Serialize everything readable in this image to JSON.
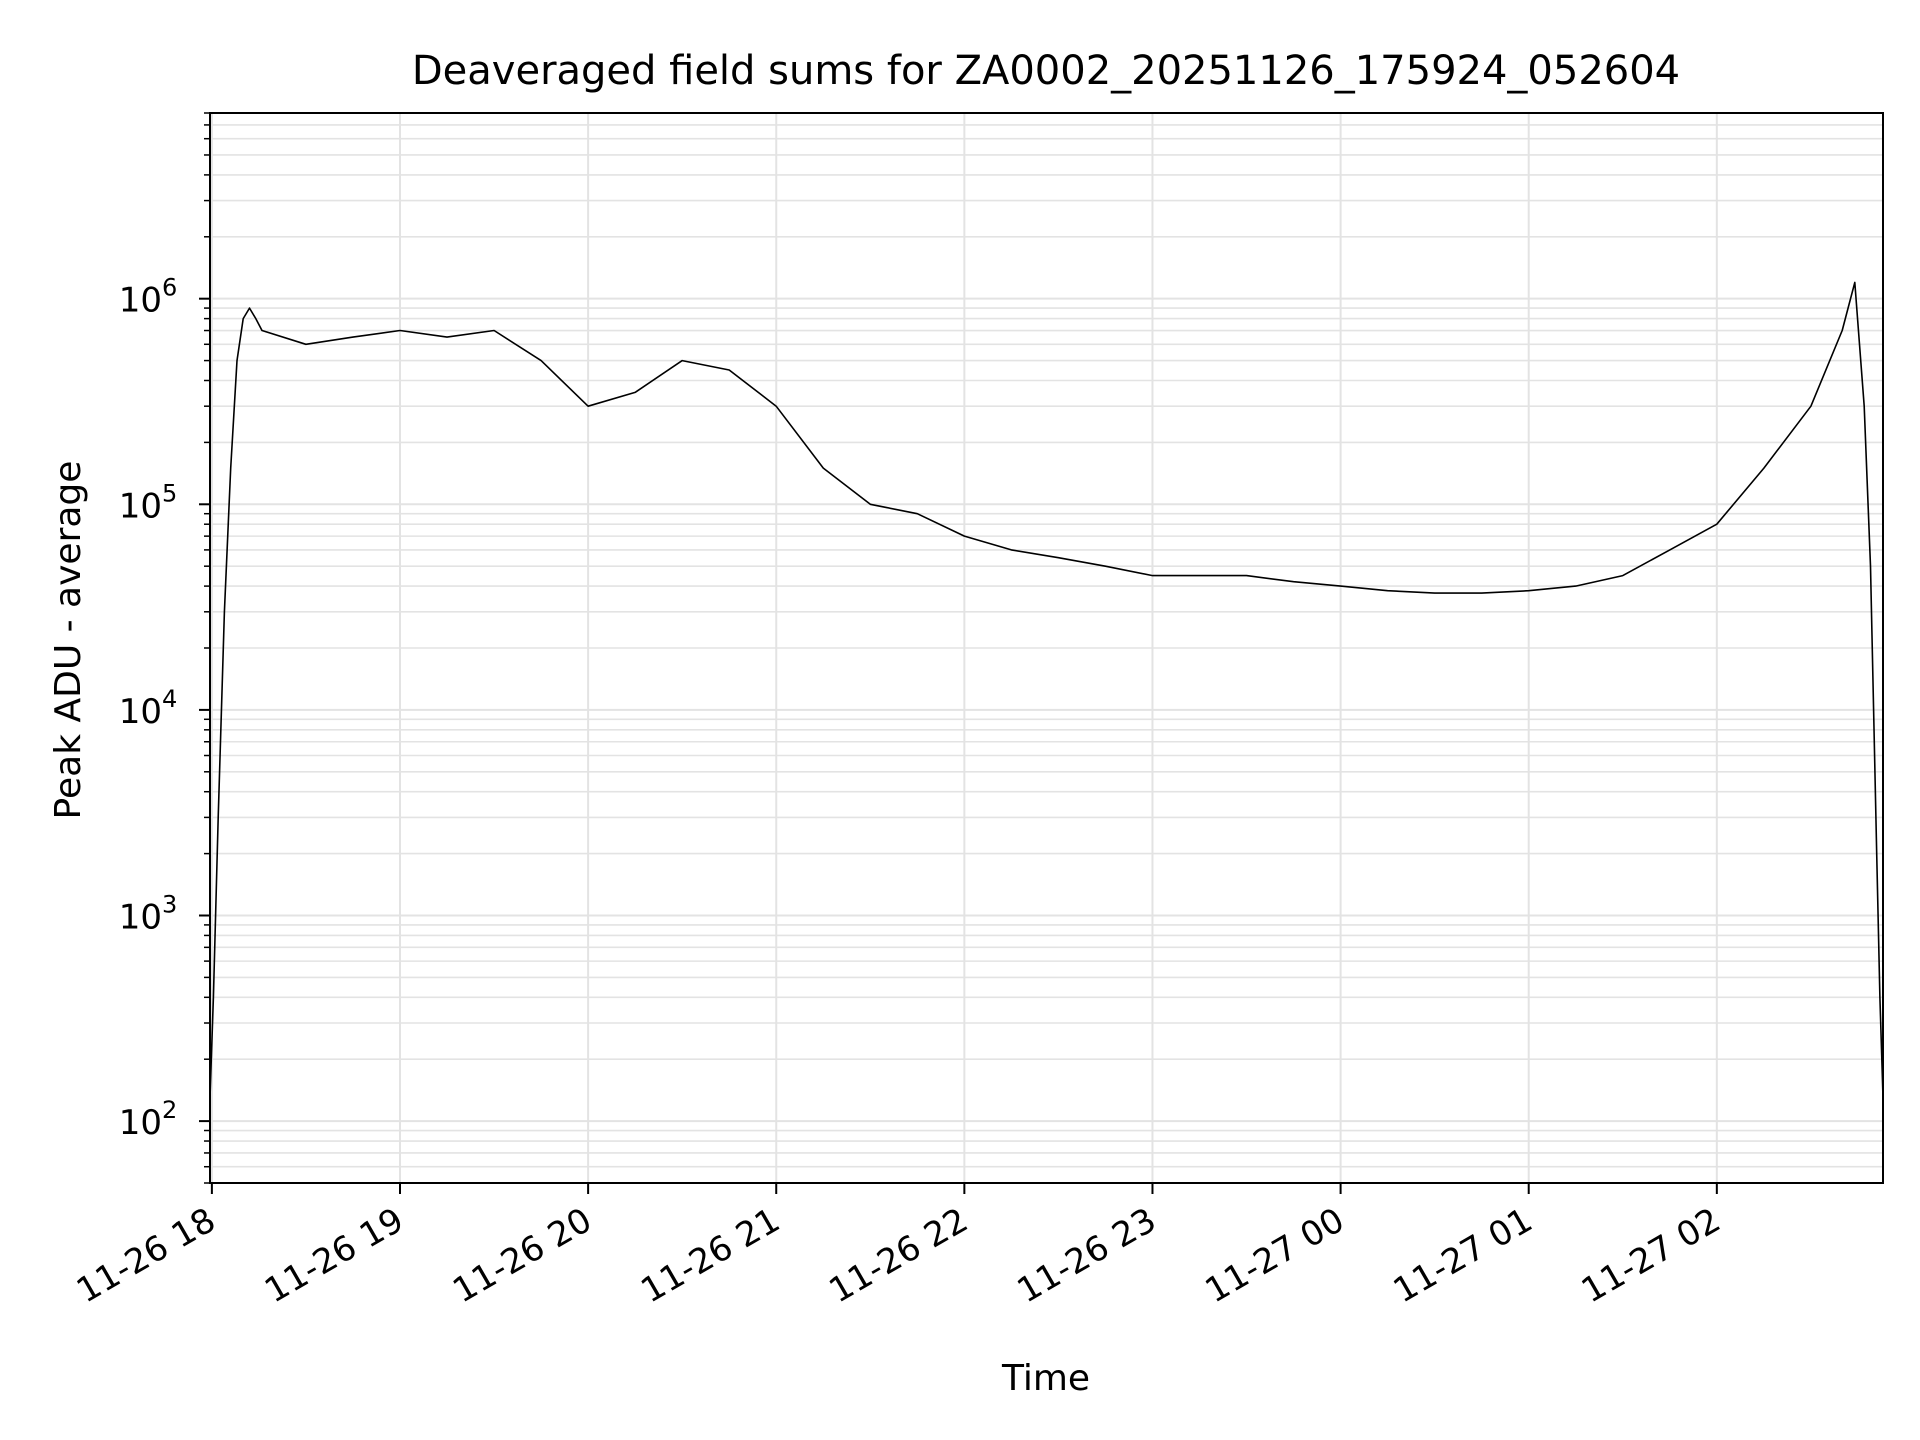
{
  "chart_data": {
    "type": "line",
    "title": "Deaveraged field sums for ZA0002_20251126_175924_052604",
    "xlabel": "Time",
    "ylabel": "Peak ADU - average",
    "yscale": "log",
    "ylim": [
      50,
      8000000
    ],
    "xlim": [
      "2025-11-26 17:59:24",
      "2025-11-27 02:53:00"
    ],
    "grid": true,
    "legend": "none",
    "x_ticks": [
      "11-26 18",
      "11-26 19",
      "11-26 20",
      "11-26 21",
      "11-26 22",
      "11-26 23",
      "11-27 00",
      "11-27 01",
      "11-27 02"
    ],
    "x_tick_times": [
      "2025-11-26 18:00",
      "2025-11-26 19:00",
      "2025-11-26 20:00",
      "2025-11-26 21:00",
      "2025-11-26 22:00",
      "2025-11-26 23:00",
      "2025-11-27 00:00",
      "2025-11-27 01:00",
      "2025-11-27 02:00"
    ],
    "y_ticks": [
      {
        "value": 100,
        "base": "10",
        "exp": "2"
      },
      {
        "value": 1000,
        "base": "10",
        "exp": "3"
      },
      {
        "value": 10000,
        "base": "10",
        "exp": "4"
      },
      {
        "value": 100000,
        "base": "10",
        "exp": "5"
      },
      {
        "value": 1000000,
        "base": "10",
        "exp": "6"
      }
    ],
    "line_color": "#000000",
    "grid_color": "#e3e3e3",
    "series": [
      {
        "x": [
          "2025-11-26 17:59:24",
          "2025-11-26 18:00:30",
          "2025-11-26 18:02:00",
          "2025-11-26 18:04:00",
          "2025-11-26 18:06:00",
          "2025-11-26 18:08:00",
          "2025-11-26 18:10:00",
          "2025-11-26 18:12:00",
          "2025-11-26 18:14:00",
          "2025-11-26 18:16:00",
          "2025-11-26 18:30:00",
          "2025-11-26 18:45:00",
          "2025-11-26 19:00:00",
          "2025-11-26 19:15:00",
          "2025-11-26 19:30:00",
          "2025-11-26 19:45:00",
          "2025-11-26 20:00:00",
          "2025-11-26 20:15:00",
          "2025-11-26 20:30:00",
          "2025-11-26 20:45:00",
          "2025-11-26 21:00:00",
          "2025-11-26 21:15:00",
          "2025-11-26 21:30:00",
          "2025-11-26 21:45:00",
          "2025-11-26 22:00:00",
          "2025-11-26 22:15:00",
          "2025-11-26 22:30:00",
          "2025-11-26 22:45:00",
          "2025-11-26 23:00:00",
          "2025-11-26 23:15:00",
          "2025-11-26 23:30:00",
          "2025-11-26 23:45:00",
          "2025-11-27 00:00:00",
          "2025-11-27 00:15:00",
          "2025-11-27 00:30:00",
          "2025-11-27 00:45:00",
          "2025-11-27 01:00:00",
          "2025-11-27 01:15:00",
          "2025-11-27 01:30:00",
          "2025-11-27 01:45:00",
          "2025-11-27 02:00:00",
          "2025-11-27 02:15:00",
          "2025-11-27 02:30:00",
          "2025-11-27 02:40:00",
          "2025-11-27 02:44:00",
          "2025-11-27 02:47:00",
          "2025-11-27 02:49:00",
          "2025-11-27 02:51:00",
          "2025-11-27 02:52:00",
          "2025-11-27 02:53:00"
        ],
        "y": [
          130,
          400,
          3000,
          30000,
          150000,
          500000,
          800000,
          900000,
          800000,
          700000,
          600000,
          650000,
          700000,
          650000,
          700000,
          500000,
          300000,
          350000,
          500000,
          450000,
          300000,
          150000,
          100000,
          90000,
          70000,
          60000,
          55000,
          50000,
          45000,
          45000,
          45000,
          42000,
          40000,
          38000,
          37000,
          37000,
          38000,
          40000,
          45000,
          60000,
          80000,
          150000,
          300000,
          700000,
          1200000,
          300000,
          50000,
          2000,
          400,
          130
        ]
      }
    ]
  }
}
